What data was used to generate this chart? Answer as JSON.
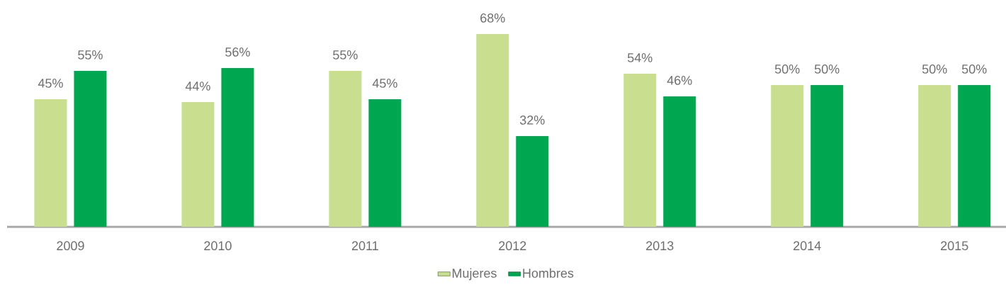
{
  "chart_data": {
    "type": "bar",
    "categories": [
      "2009",
      "2010",
      "2011",
      "2012",
      "2013",
      "2014",
      "2015"
    ],
    "series": [
      {
        "name": "Mujeres",
        "color": "#c9df8f",
        "values": [
          45,
          44,
          55,
          68,
          54,
          50,
          50
        ],
        "value_labels": [
          "45%",
          "44%",
          "55%",
          "68%",
          "54%",
          "50%",
          "50%"
        ]
      },
      {
        "name": "Hombres",
        "color": "#00a650",
        "values": [
          55,
          56,
          45,
          32,
          46,
          50,
          50
        ],
        "value_labels": [
          "55%",
          "56%",
          "45%",
          "32%",
          "46%",
          "50%",
          "50%"
        ]
      }
    ],
    "legend": "bottom"
  }
}
